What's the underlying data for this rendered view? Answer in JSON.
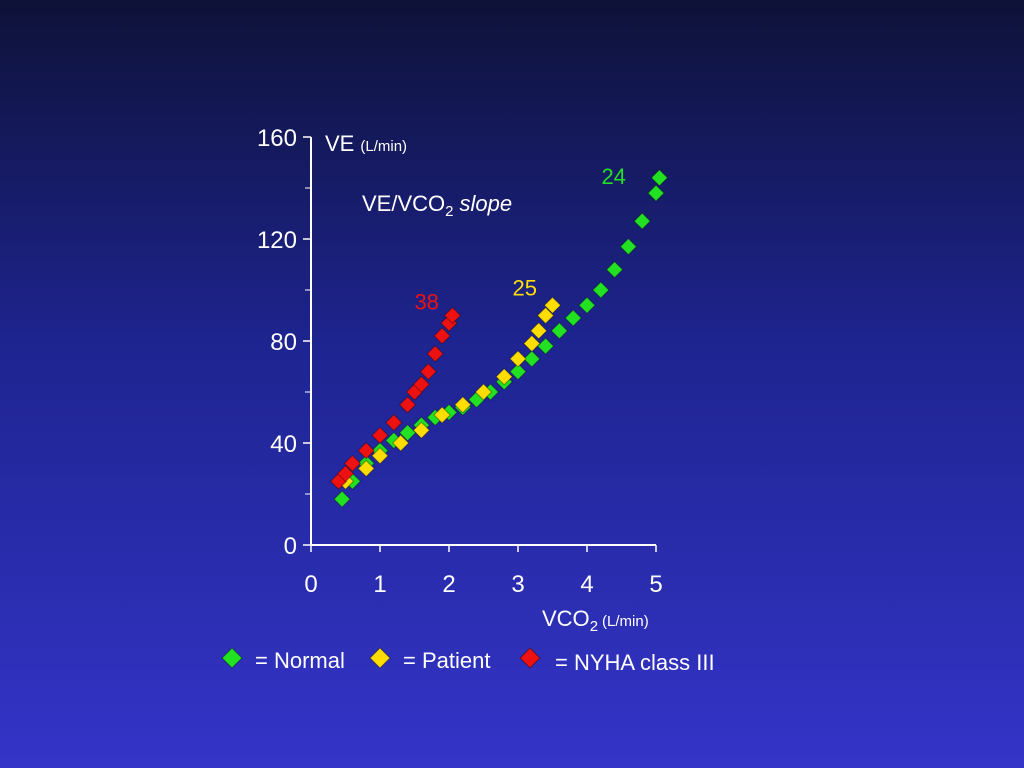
{
  "chart_data": {
    "type": "scatter",
    "y_label": {
      "main": "VE",
      "unit": "(L/min)"
    },
    "x_label": {
      "main": "VCO",
      "sub": "2",
      "unit": "(L/min)"
    },
    "slope_label": {
      "main": "VE/VCO",
      "sub": "2",
      "italic": "slope"
    },
    "xlim": [
      0,
      5
    ],
    "ylim": [
      0,
      160
    ],
    "xticks": [
      0,
      1,
      2,
      3,
      4,
      5
    ],
    "yticks": [
      0,
      40,
      80,
      120,
      160
    ],
    "yminorticks": [
      20,
      60,
      100,
      140
    ],
    "series": [
      {
        "name": "= Normal",
        "color": "#22e022",
        "slope": "24",
        "x": [
          0.45,
          0.6,
          0.8,
          1.0,
          1.2,
          1.4,
          1.6,
          1.8,
          2.0,
          2.2,
          2.4,
          2.6,
          2.8,
          3.0,
          3.2,
          3.4,
          3.6,
          3.8,
          4.0,
          4.2,
          4.4,
          4.6,
          4.8,
          5.0,
          5.05
        ],
        "values": [
          18,
          25,
          32,
          37,
          41,
          44,
          47,
          50,
          52,
          54,
          57,
          60,
          64,
          68,
          73,
          78,
          84,
          89,
          94,
          100,
          108,
          117,
          127,
          138,
          144
        ]
      },
      {
        "name": "= Patient",
        "color": "#ffdd00",
        "slope": "25",
        "x": [
          0.5,
          0.8,
          1.0,
          1.3,
          1.6,
          1.9,
          2.2,
          2.5,
          2.8,
          3.0,
          3.2,
          3.3,
          3.4,
          3.5
        ],
        "values": [
          25,
          30,
          35,
          40,
          45,
          51,
          55,
          60,
          66,
          73,
          79,
          84,
          90,
          94
        ]
      },
      {
        "name": "= NYHA class III",
        "color": "#ee1111",
        "slope": "38",
        "x": [
          0.4,
          0.5,
          0.6,
          0.8,
          1.0,
          1.2,
          1.4,
          1.5,
          1.6,
          1.7,
          1.8,
          1.9,
          2.0,
          2.05
        ],
        "values": [
          25,
          28,
          32,
          37,
          43,
          48,
          55,
          60,
          63,
          68,
          75,
          82,
          87,
          90
        ]
      }
    ]
  }
}
